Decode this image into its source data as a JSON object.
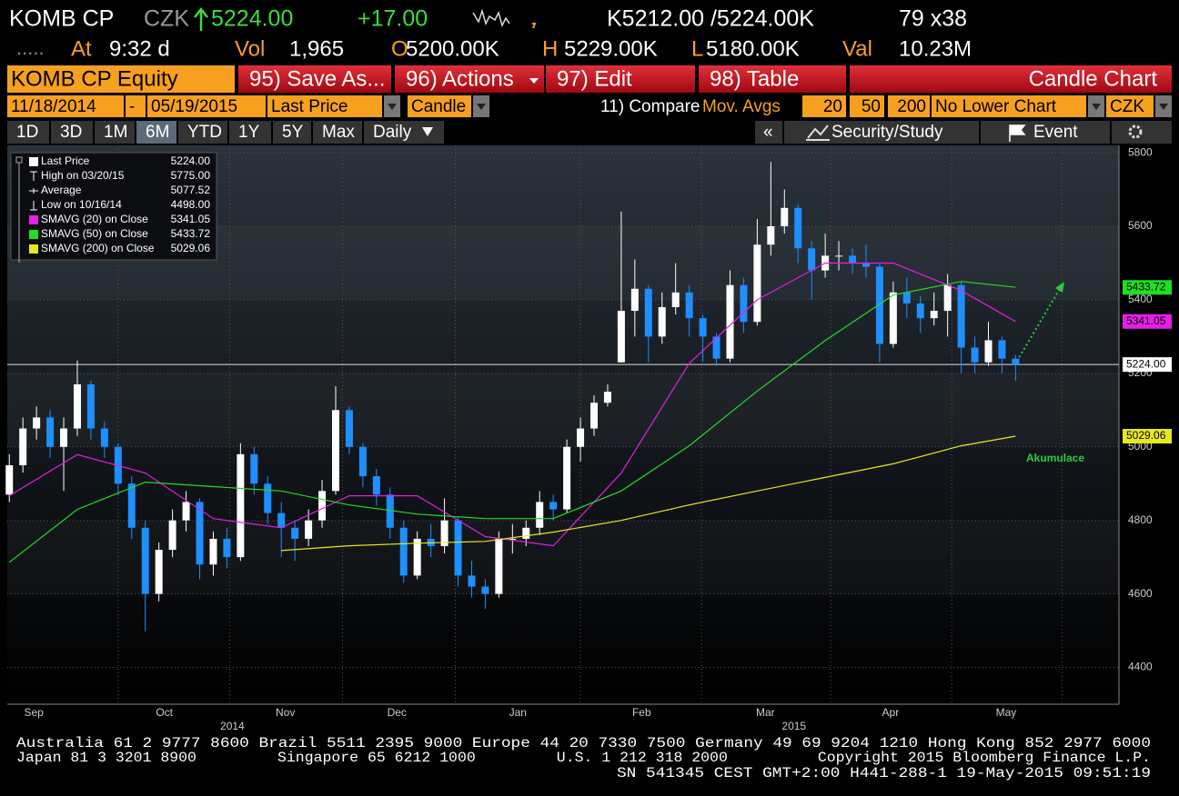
{
  "header": {
    "ticker": "KOMB CP",
    "currency": "CZK",
    "last": "5224.00",
    "change": "+17.00",
    "bid_ask": "K5212.00 /5224.00K",
    "size": "79 x38",
    "status": ".....",
    "row2": [
      {
        "label": "At",
        "value": "9:32 d"
      },
      {
        "label": "Vol",
        "value": "1,965"
      },
      {
        "label": "O",
        "value": "5200.00K"
      },
      {
        "label": "H",
        "value": "5229.00K"
      },
      {
        "label": "L",
        "value": "5180.00K"
      },
      {
        "label": "Val",
        "value": "10.23M"
      }
    ]
  },
  "toolbar": {
    "security": "KOMB CP Equity",
    "buttons": [
      "95) Save As...",
      "96) Actions",
      "97) Edit",
      "98) Table"
    ],
    "view": "Candle Chart"
  },
  "settings": {
    "start": "11/18/2014",
    "sep": "-",
    "end": "05/19/2015",
    "field": "Last Price",
    "style": "Candle",
    "compare": "11) Compare",
    "studies": "Mov. Avgs",
    "periods": [
      20,
      50,
      200
    ],
    "lower": "No Lower Chart",
    "currency": "CZK"
  },
  "ranges": [
    "1D",
    "3D",
    "1M",
    "6M",
    "YTD",
    "1Y",
    "5Y",
    "Max",
    "Daily"
  ],
  "active": 3,
  "tools": [
    "«",
    "Security/Study",
    "Event"
  ],
  "footer": [
    "Australia 61 2 9777 8600 Brazil 5511 2395 9000 Europe 44 20 7330 7500 Germany 49 69 9204 1210 Hong Kong 852 2977 6000",
    "Japan 81 3 3201 8900         Singapore 65 6212 1000         U.S. 1 212 318 2000          Copyright 2015 Bloomberg Finance L.P.",
    "SN 541345 CEST GMT+2:00 H441-288-1 19-May-2015 09:51:19"
  ],
  "chart_data": {
    "type": "candlestick",
    "up_color": "#ffffff",
    "down_color": "#1e8fff",
    "candles": {
      "open": [
        4870,
        4950,
        5050,
        5080,
        5000,
        5050,
        5170,
        5050,
        5000,
        4900,
        4780,
        4600,
        4720,
        4800,
        4850,
        4680,
        4750,
        4700,
        4980,
        4900,
        4820,
        4780,
        4750,
        4800,
        4880,
        5100,
        5000,
        4920,
        4870,
        4780,
        4650,
        4750,
        4730,
        4800,
        4650,
        4620,
        4600,
        4750,
        4750,
        4780,
        4850,
        4830,
        5000,
        5050,
        5120,
        5230,
        5370,
        5430,
        5300,
        5380,
        5420,
        5350,
        5300,
        5240,
        5440,
        5340,
        5550,
        5600,
        5650,
        5540,
        5480,
        5520,
        5520,
        5500,
        5490,
        5280,
        5420,
        5390,
        5350,
        5370,
        5440,
        5270,
        5230,
        5290,
        5240
      ],
      "high": [
        4980,
        5080,
        5110,
        5100,
        5080,
        5235,
        5180,
        5070,
        5010,
        4920,
        4800,
        4740,
        4830,
        4880,
        4860,
        4770,
        4780,
        5010,
        5000,
        4920,
        4850,
        4800,
        4830,
        4910,
        5165,
        5110,
        5010,
        4940,
        4890,
        4800,
        4770,
        4790,
        4860,
        4810,
        4690,
        4640,
        4770,
        4790,
        4800,
        4880,
        4870,
        5020,
        5080,
        5140,
        5170,
        5640,
        5510,
        5440,
        5420,
        5500,
        5440,
        5360,
        5310,
        5480,
        5460,
        5620,
        5775,
        5700,
        5660,
        5560,
        5580,
        5560,
        5540,
        5550,
        5500,
        5450,
        5460,
        5410,
        5420,
        5470,
        5450,
        5300,
        5340,
        5300,
        5250
      ],
      "low": [
        4850,
        4930,
        5020,
        4970,
        4880,
        5030,
        5020,
        4970,
        4870,
        4750,
        4498,
        4580,
        4700,
        4770,
        4640,
        4650,
        4670,
        4690,
        4870,
        4790,
        4700,
        4690,
        4730,
        4780,
        4870,
        4980,
        4890,
        4840,
        4750,
        4630,
        4640,
        4700,
        4710,
        4620,
        4590,
        4560,
        4590,
        4710,
        4730,
        4760,
        4800,
        4820,
        4960,
        5030,
        5110,
        5230,
        5300,
        5230,
        5280,
        5360,
        5300,
        5230,
        5220,
        5230,
        5310,
        5330,
        5520,
        5580,
        5500,
        5400,
        5460,
        5480,
        5470,
        5460,
        5230,
        5270,
        5350,
        5310,
        5330,
        5300,
        5200,
        5200,
        5220,
        5200,
        5180
      ],
      "close": [
        4950,
        5050,
        5080,
        5000,
        5050,
        5170,
        5050,
        5000,
        4900,
        4780,
        4600,
        4720,
        4800,
        4850,
        4680,
        4750,
        4700,
        4980,
        4900,
        4820,
        4780,
        4750,
        4800,
        4880,
        5100,
        5000,
        4920,
        4870,
        4780,
        4650,
        4750,
        4730,
        4800,
        4650,
        4620,
        4600,
        4750,
        4750,
        4780,
        4850,
        4830,
        5000,
        5050,
        5120,
        5150,
        5370,
        5430,
        5300,
        5380,
        5420,
        5350,
        5300,
        5240,
        5440,
        5340,
        5550,
        5600,
        5650,
        5540,
        5480,
        5520,
        5520,
        5500,
        5490,
        5280,
        5420,
        5390,
        5350,
        5370,
        5440,
        5270,
        5230,
        5290,
        5240,
        5224
      ]
    },
    "series": [
      {
        "name": "SMAVG (20) on Close",
        "color": "#e61ee6",
        "x": [
          1,
          6,
          11,
          16,
          21,
          26,
          31,
          36,
          41,
          46,
          51,
          56,
          61,
          66,
          71,
          75
        ],
        "values": [
          4867,
          4979,
          4929,
          4805,
          4780,
          4867,
          4867,
          4756,
          4731,
          4929,
          5227,
          5400,
          5500,
          5500,
          5425,
          5341
        ],
        "last": {
          "value": 5341.05,
          "label": "5341.05"
        }
      },
      {
        "name": "SMAVG (50) on Close",
        "color": "#22dd22",
        "x": [
          1,
          6,
          11,
          16,
          21,
          26,
          31,
          36,
          41,
          46,
          51,
          56,
          61,
          66,
          71,
          75
        ],
        "values": [
          4686,
          4830,
          4904,
          4892,
          4880,
          4842,
          4817,
          4805,
          4805,
          4880,
          5003,
          5152,
          5289,
          5413,
          5450,
          5434
        ],
        "last": {
          "value": 5433.72,
          "label": "5433.72"
        }
      },
      {
        "name": "SMAVG (200) on Close",
        "color": "#e8e81e",
        "x": [
          21,
          26,
          31,
          36,
          41,
          46,
          51,
          56,
          61,
          66,
          71,
          75
        ],
        "values": [
          4718,
          4731,
          4738,
          4743,
          4768,
          4800,
          4842,
          4880,
          4917,
          4954,
          5003,
          5029
        ],
        "last": {
          "value": 5029.06,
          "label": "5029.06"
        }
      }
    ],
    "stats": [
      {
        "name": "Last Price",
        "value": 5224,
        "label": "5224.00"
      },
      {
        "name": "High on 03/20/15",
        "value": 5775,
        "label": "5775.00"
      },
      {
        "name": "Average",
        "value": 5077.52,
        "label": "5077.52"
      },
      {
        "name": "Low on 10/16/14",
        "value": 4498,
        "label": "4498.00"
      }
    ],
    "ylim": [
      4300,
      5820
    ],
    "yticks": [
      4400,
      4600,
      4800,
      5000,
      5200,
      5400,
      5600,
      5800
    ],
    "xlim": [
      0.85,
      82.6
    ],
    "xticks": [
      {
        "value": 2.8,
        "label": "Sep"
      },
      {
        "value": 12.4,
        "label": "Oct"
      },
      {
        "value": 21.3,
        "label": "Nov"
      },
      {
        "value": 29.5,
        "label": "Dec"
      },
      {
        "value": 38.4,
        "label": "Jan"
      },
      {
        "value": 47.5,
        "label": "Feb"
      },
      {
        "value": 56.6,
        "label": "Mar"
      },
      {
        "value": 65.8,
        "label": "Apr"
      },
      {
        "value": 74.3,
        "label": "May"
      }
    ],
    "xgrid": [
      9,
      17.2,
      25.5,
      33.8,
      43,
      51.9,
      61.4,
      70.3,
      78.4
    ],
    "years": [
      {
        "value": 17.4,
        "label": "2014"
      },
      {
        "value": 58.7,
        "label": "2015"
      }
    ],
    "annotation": "Akumulace",
    "grid": true
  }
}
